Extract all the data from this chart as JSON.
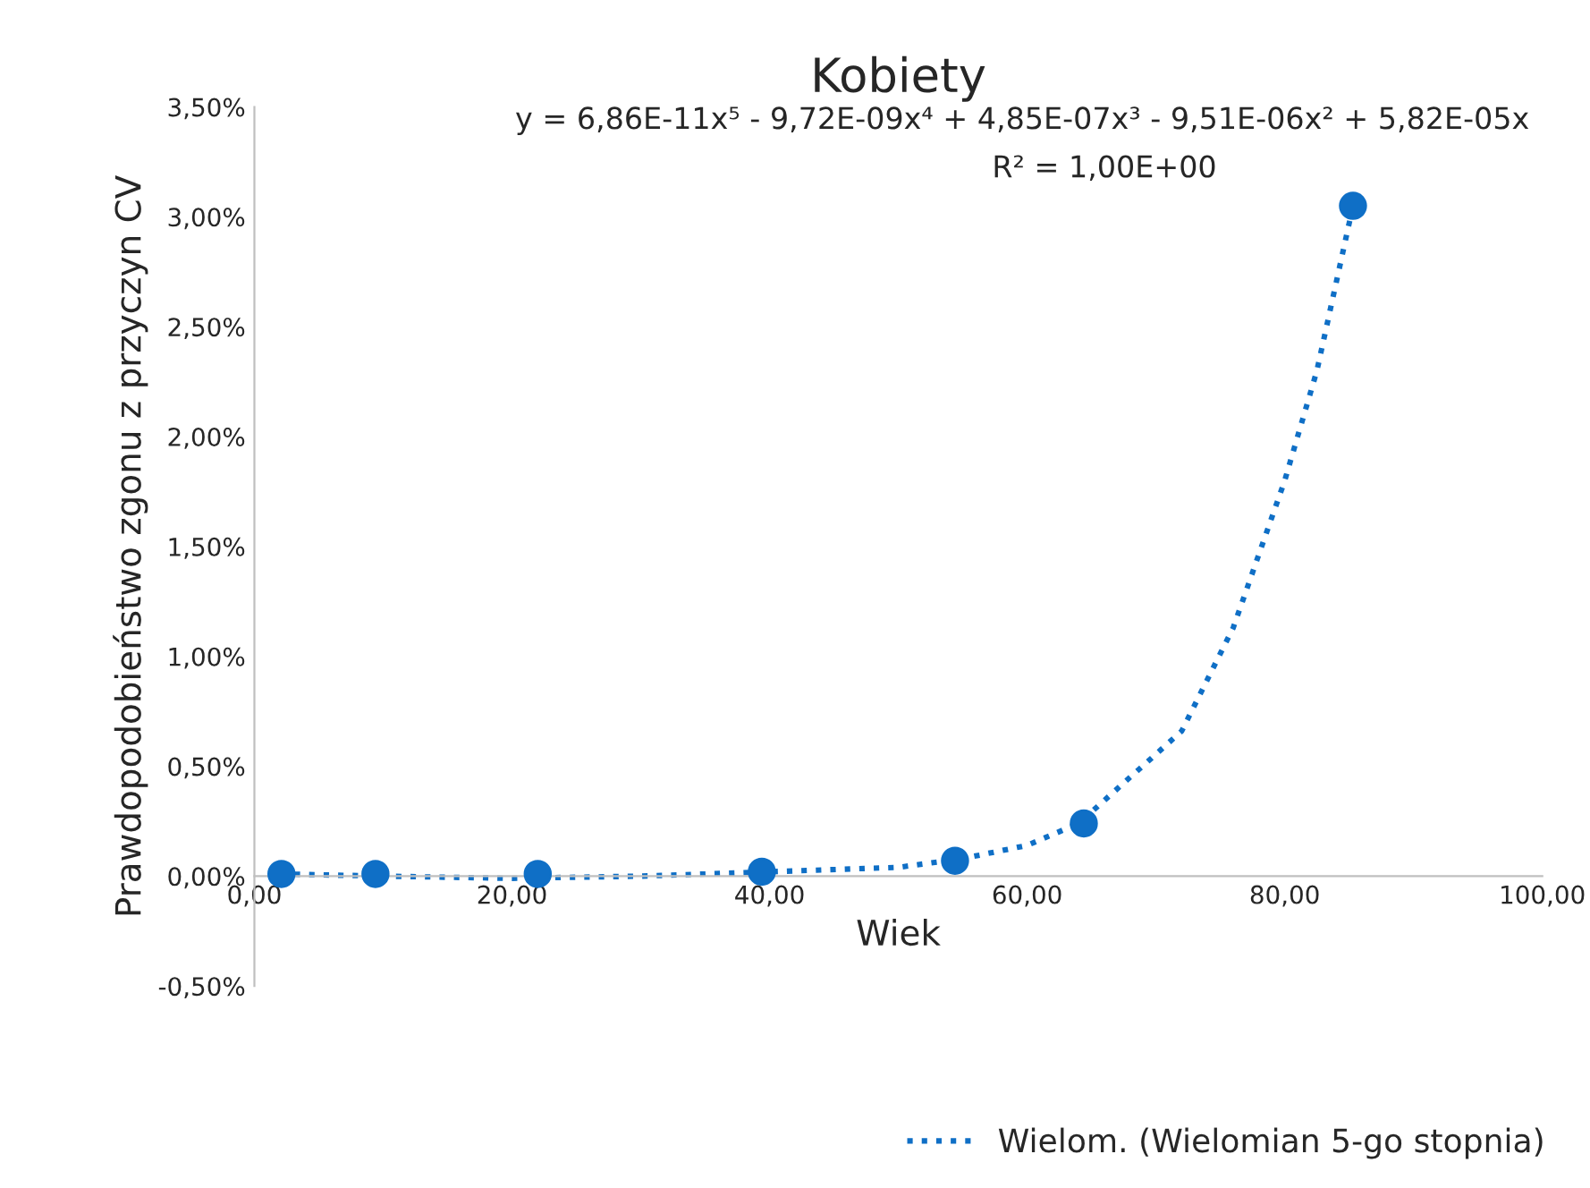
{
  "chart_data": {
    "type": "scatter",
    "title": "Kobiety",
    "xlabel": "Wiek",
    "ylabel": "Prawdopodobieństwo zgonu z przyczyn CV",
    "x": [
      2.1,
      9.4,
      22.0,
      39.4,
      54.4,
      64.4,
      85.3
    ],
    "series": [
      {
        "color": "#0f6fc6",
        "marker": "circle",
        "values": [
          0.01,
          0.01,
          0.01,
          0.02,
          0.07,
          0.24,
          3.05
        ]
      },
      {
        "type": "line",
        "name": "Wielom. (Wielomian 5-go stopnia)",
        "color": "#0f6fc6",
        "line_style": "dotted",
        "marker": "none",
        "x": [
          2,
          10,
          20,
          30,
          40,
          50,
          55,
          60,
          64,
          68,
          72,
          76,
          80,
          82.5,
          85.3
        ],
        "values": [
          0.01,
          0.0,
          -0.01,
          0.0,
          0.02,
          0.04,
          0.08,
          0.14,
          0.24,
          0.45,
          0.66,
          1.13,
          1.8,
          2.3,
          3.05
        ]
      }
    ],
    "annotations": [
      "y = 6,86E-11x⁵ - 9,72E-09x⁴ + 4,85E-07x³ - 9,51E-06x² + 5,82E-05x",
      "R² = 1,00E+00"
    ],
    "xlim": [
      0,
      100
    ],
    "xticks": [
      {
        "value": 0,
        "label": "0,00"
      },
      {
        "value": 20,
        "label": "20,00"
      },
      {
        "value": 40,
        "label": "40,00"
      },
      {
        "value": 60,
        "label": "60,00"
      },
      {
        "value": 80,
        "label": "80,00"
      },
      {
        "value": 100,
        "label": "100,00"
      }
    ],
    "ylim": [
      -0.5,
      3.5
    ],
    "yticks": [
      {
        "value": -0.5,
        "label": "-0,50%"
      },
      {
        "value": 0,
        "label": "0,00%"
      },
      {
        "value": 0.5,
        "label": "0,50%"
      },
      {
        "value": 1.0,
        "label": "1,00%"
      },
      {
        "value": 1.5,
        "label": "1,50%"
      },
      {
        "value": 2.0,
        "label": "2,00%"
      },
      {
        "value": 2.5,
        "label": "2,50%"
      },
      {
        "value": 3.0,
        "label": "3,00%"
      },
      {
        "value": 3.5,
        "label": "3,50%"
      }
    ],
    "grid": false,
    "legend": "bottom"
  }
}
